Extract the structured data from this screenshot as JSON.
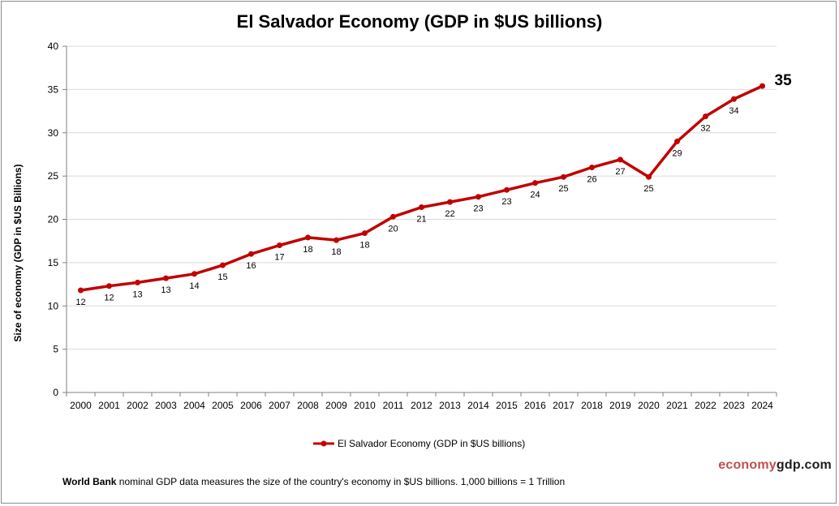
{
  "chart_data": {
    "type": "line",
    "title": "El Salvador Economy (GDP in $US billions)",
    "ylabel": "Size of economy (GDP in $US Billions)",
    "xlabel": "",
    "ylim": [
      0,
      40
    ],
    "yticks": [
      0,
      5,
      10,
      15,
      20,
      25,
      30,
      35,
      40
    ],
    "grid": true,
    "legend_position": "bottom-center",
    "categories": [
      "2000",
      "2001",
      "2002",
      "2003",
      "2004",
      "2005",
      "2006",
      "2007",
      "2008",
      "2009",
      "2010",
      "2011",
      "2012",
      "2013",
      "2014",
      "2015",
      "2016",
      "2017",
      "2018",
      "2019",
      "2020",
      "2021",
      "2022",
      "2023",
      "2024"
    ],
    "series": [
      {
        "name": "El Salvador Economy (GDP in $US billions)",
        "color": "#c00000",
        "values": [
          11.8,
          12.3,
          12.7,
          13.2,
          13.7,
          14.7,
          16.0,
          17.0,
          17.9,
          17.6,
          18.4,
          20.3,
          21.4,
          22.0,
          22.6,
          23.4,
          24.2,
          24.9,
          26.0,
          26.9,
          24.9,
          29.0,
          31.9,
          33.9,
          35.4
        ],
        "labels": [
          "12",
          "12",
          "13",
          "13",
          "14",
          "15",
          "16",
          "17",
          "18",
          "18",
          "18",
          "20",
          "21",
          "22",
          "23",
          "23",
          "24",
          "25",
          "26",
          "27",
          "25",
          "29",
          "32",
          "34",
          "35"
        ]
      }
    ]
  },
  "footer": {
    "source_bold": "World Bank",
    "source_text": " nominal GDP data  measures the size of the country's economy in $US billions. 1,000 billions = 1 Trillion"
  },
  "brand": {
    "part1": "economy",
    "part2": "gdp",
    "part3": ".com",
    "color_red": "#c0504d",
    "color_dark": "#1f1f1f"
  }
}
